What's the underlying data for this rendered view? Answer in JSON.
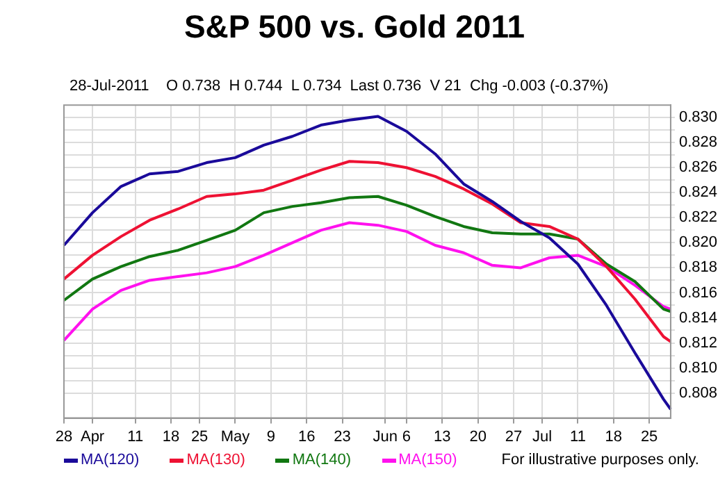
{
  "chart_data": {
    "type": "line",
    "title": "S&P 500 vs. Gold 2011",
    "subtitle": "28-Jul-2011    O 0.738  H 0.744  L 0.734  Last 0.736  V 21  Chg -0.003 (-0.37%)",
    "categories": [
      "28",
      null,
      null,
      null,
      "Apr",
      null,
      null,
      null,
      null,
      null,
      "11",
      null,
      null,
      null,
      null,
      "18",
      null,
      null,
      null,
      "25",
      null,
      null,
      null,
      null,
      "May",
      null,
      null,
      null,
      null,
      "9",
      null,
      null,
      null,
      null,
      "16",
      null,
      null,
      null,
      null,
      "23",
      null,
      null,
      null,
      null,
      null,
      "Jun",
      null,
      null,
      "6",
      null,
      null,
      null,
      null,
      "13",
      null,
      null,
      null,
      null,
      "20",
      null,
      null,
      null,
      null,
      "27",
      null,
      null,
      null,
      "Jul",
      null,
      null,
      null,
      null,
      "11",
      null,
      null,
      null,
      null,
      "18",
      null,
      null,
      null,
      null,
      "25",
      null,
      null,
      null
    ],
    "series": [
      {
        "name": "MA(120)",
        "color": "#1a0a9a",
        "values": [
          0.8198,
          null,
          null,
          null,
          0.8224,
          null,
          null,
          null,
          0.8245,
          null,
          null,
          null,
          0.8255,
          null,
          null,
          null,
          0.8257,
          null,
          null,
          null,
          0.8264,
          null,
          null,
          null,
          0.8268,
          null,
          null,
          null,
          0.8278,
          null,
          null,
          null,
          0.8285,
          null,
          null,
          null,
          0.8294,
          null,
          null,
          null,
          0.8298,
          null,
          null,
          null,
          0.8301,
          null,
          null,
          null,
          0.8289,
          null,
          null,
          null,
          0.8271,
          null,
          null,
          null,
          0.8247,
          null,
          null,
          null,
          0.8233,
          null,
          null,
          null,
          0.8217,
          null,
          null,
          null,
          0.8204,
          null,
          null,
          null,
          0.8183,
          null,
          null,
          null,
          0.815,
          null,
          null,
          null,
          0.8112,
          null,
          null,
          null,
          0.8075,
          0.8067
        ]
      },
      {
        "name": "MA(130)",
        "color": "#ee1133",
        "values": [
          0.8171,
          null,
          null,
          null,
          0.819,
          null,
          null,
          null,
          0.8205,
          null,
          null,
          null,
          0.8218,
          null,
          null,
          null,
          0.8227,
          null,
          null,
          null,
          0.8237,
          null,
          null,
          null,
          0.8239,
          null,
          null,
          null,
          0.8242,
          null,
          null,
          null,
          0.825,
          null,
          null,
          null,
          0.8258,
          null,
          null,
          null,
          0.8265,
          null,
          null,
          null,
          0.8264,
          null,
          null,
          null,
          0.826,
          null,
          null,
          null,
          0.8253,
          null,
          null,
          null,
          0.8243,
          null,
          null,
          null,
          0.8231,
          null,
          null,
          null,
          0.8216,
          null,
          null,
          null,
          0.8213,
          null,
          null,
          null,
          0.8203,
          null,
          null,
          null,
          0.8181,
          null,
          null,
          null,
          0.8155,
          null,
          null,
          null,
          0.8125,
          0.8121
        ]
      },
      {
        "name": "MA(140)",
        "color": "#117711",
        "values": [
          0.8154,
          null,
          null,
          null,
          0.8171,
          null,
          null,
          null,
          0.8181,
          null,
          null,
          null,
          0.8189,
          null,
          null,
          null,
          0.8194,
          null,
          null,
          null,
          0.8202,
          null,
          null,
          null,
          0.821,
          null,
          null,
          null,
          0.8224,
          null,
          null,
          null,
          0.8229,
          null,
          null,
          null,
          0.8232,
          null,
          null,
          null,
          0.8236,
          null,
          null,
          null,
          0.8237,
          null,
          null,
          null,
          0.823,
          null,
          null,
          null,
          0.8221,
          null,
          null,
          null,
          0.8213,
          null,
          null,
          null,
          0.8208,
          null,
          null,
          null,
          0.8207,
          null,
          null,
          null,
          0.8207,
          null,
          null,
          null,
          0.8203,
          null,
          null,
          null,
          0.8183,
          null,
          null,
          null,
          0.8169,
          null,
          null,
          null,
          0.8147,
          0.8145
        ]
      },
      {
        "name": "MA(150)",
        "color": "#ff11ee",
        "values": [
          0.8122,
          null,
          null,
          null,
          0.8147,
          null,
          null,
          null,
          0.8162,
          null,
          null,
          null,
          0.817,
          null,
          null,
          null,
          0.8173,
          null,
          null,
          null,
          0.8176,
          null,
          null,
          null,
          0.8181,
          null,
          null,
          null,
          0.819,
          null,
          null,
          null,
          0.82,
          null,
          null,
          null,
          0.821,
          null,
          null,
          null,
          0.8216,
          null,
          null,
          null,
          0.8214,
          null,
          null,
          null,
          0.8209,
          null,
          null,
          null,
          0.8198,
          null,
          null,
          null,
          0.8192,
          null,
          null,
          null,
          0.8182,
          null,
          null,
          null,
          0.818,
          null,
          null,
          null,
          0.8188,
          null,
          null,
          null,
          0.819,
          null,
          null,
          null,
          0.8181,
          null,
          null,
          null,
          0.8166,
          null,
          null,
          null,
          0.8149,
          0.8147
        ]
      }
    ],
    "ylim": [
      0.806,
      0.831
    ],
    "yticks": [
      {
        "value": 0.808,
        "label": "0.808"
      },
      {
        "value": 0.809,
        "label": null
      },
      {
        "value": 0.81,
        "label": "0.810"
      },
      {
        "value": 0.811,
        "label": null
      },
      {
        "value": 0.812,
        "label": "0.812"
      },
      {
        "value": 0.813,
        "label": null
      },
      {
        "value": 0.814,
        "label": "0.814"
      },
      {
        "value": 0.815,
        "label": null
      },
      {
        "value": 0.816,
        "label": "0.816"
      },
      {
        "value": 0.817,
        "label": null
      },
      {
        "value": 0.818,
        "label": "0.818"
      },
      {
        "value": 0.819,
        "label": null
      },
      {
        "value": 0.82,
        "label": "0.820"
      },
      {
        "value": 0.821,
        "label": null
      },
      {
        "value": 0.822,
        "label": "0.822"
      },
      {
        "value": 0.823,
        "label": null
      },
      {
        "value": 0.824,
        "label": "0.824"
      },
      {
        "value": 0.825,
        "label": null
      },
      {
        "value": 0.826,
        "label": "0.826"
      },
      {
        "value": 0.827,
        "label": null
      },
      {
        "value": 0.828,
        "label": "0.828"
      },
      {
        "value": 0.829,
        "label": null
      },
      {
        "value": 0.83,
        "label": "0.830"
      }
    ],
    "grid": true,
    "legend": "bottom",
    "marker": "none",
    "line_style": "solid",
    "annotations": [
      "For illustrative purposes only."
    ]
  }
}
